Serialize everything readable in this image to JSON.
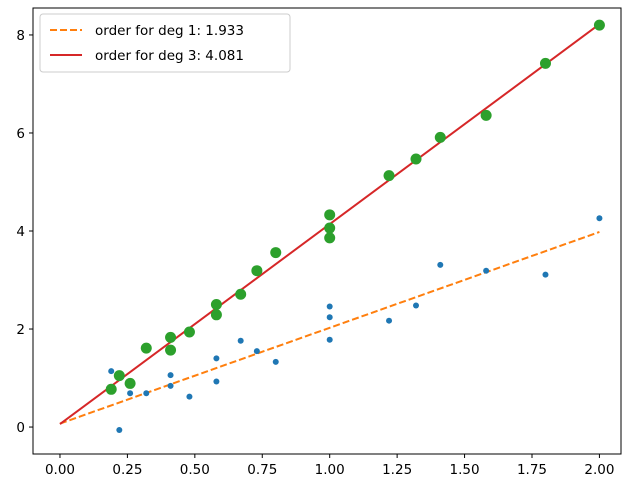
{
  "chart_data": {
    "type": "scatter",
    "title": "",
    "xlabel": "",
    "ylabel": "",
    "xlim": [
      -0.1,
      2.08
    ],
    "ylim": [
      -0.55,
      8.55
    ],
    "x_ticks": [
      "0.00",
      "0.25",
      "0.50",
      "0.75",
      "1.00",
      "1.25",
      "1.50",
      "1.75",
      "2.00"
    ],
    "x_tick_values": [
      0,
      0.25,
      0.5,
      0.75,
      1.0,
      1.25,
      1.5,
      1.75,
      2.0
    ],
    "y_ticks": [
      "0",
      "2",
      "4",
      "6",
      "8"
    ],
    "y_tick_values": [
      0,
      2,
      4,
      6,
      8
    ],
    "grid": false,
    "legend_position": "top-left",
    "legend": [
      {
        "label": "order for deg 1: 1.933",
        "style": "dashed",
        "color": "#ff7f0e"
      },
      {
        "label": "order for deg 3: 4.081",
        "style": "solid",
        "color": "#d62728"
      }
    ],
    "series": [
      {
        "kind": "points",
        "color": "#1f77b4",
        "size": "small",
        "points": [
          [
            0.19,
            1.14
          ],
          [
            0.22,
            -0.06
          ],
          [
            0.26,
            0.69
          ],
          [
            0.32,
            0.69
          ],
          [
            0.41,
            1.06
          ],
          [
            0.41,
            0.84
          ],
          [
            0.48,
            0.62
          ],
          [
            0.58,
            1.4
          ],
          [
            0.58,
            0.93
          ],
          [
            0.67,
            1.76
          ],
          [
            0.73,
            1.55
          ],
          [
            0.8,
            1.33
          ],
          [
            1.0,
            2.46
          ],
          [
            1.0,
            2.24
          ],
          [
            1.0,
            1.78
          ],
          [
            1.22,
            2.17
          ],
          [
            1.32,
            2.48
          ],
          [
            1.41,
            3.31
          ],
          [
            1.58,
            3.19
          ],
          [
            1.8,
            3.11
          ],
          [
            2.0,
            4.26
          ]
        ]
      },
      {
        "kind": "points",
        "color": "#2ca02c",
        "size": "large",
        "points": [
          [
            0.19,
            0.77
          ],
          [
            0.22,
            1.05
          ],
          [
            0.26,
            0.89
          ],
          [
            0.32,
            1.61
          ],
          [
            0.41,
            1.83
          ],
          [
            0.41,
            1.57
          ],
          [
            0.48,
            1.94
          ],
          [
            0.58,
            2.5
          ],
          [
            0.58,
            2.29
          ],
          [
            0.67,
            2.71
          ],
          [
            0.73,
            3.19
          ],
          [
            0.8,
            3.56
          ],
          [
            1.0,
            4.33
          ],
          [
            1.0,
            4.06
          ],
          [
            1.0,
            3.86
          ],
          [
            1.22,
            5.13
          ],
          [
            1.32,
            5.47
          ],
          [
            1.41,
            5.91
          ],
          [
            1.58,
            6.36
          ],
          [
            1.8,
            7.42
          ],
          [
            2.0,
            8.2
          ]
        ]
      },
      {
        "kind": "line",
        "name": "order for deg 1: 1.933",
        "color": "#ff7f0e",
        "style": "dashed",
        "x": [
          0.0,
          2.0
        ],
        "y": [
          0.07,
          3.98
        ]
      },
      {
        "kind": "line",
        "name": "order for deg 3: 4.081",
        "color": "#d62728",
        "style": "solid",
        "x": [
          0.0,
          2.0
        ],
        "y": [
          0.06,
          8.22
        ]
      }
    ]
  }
}
